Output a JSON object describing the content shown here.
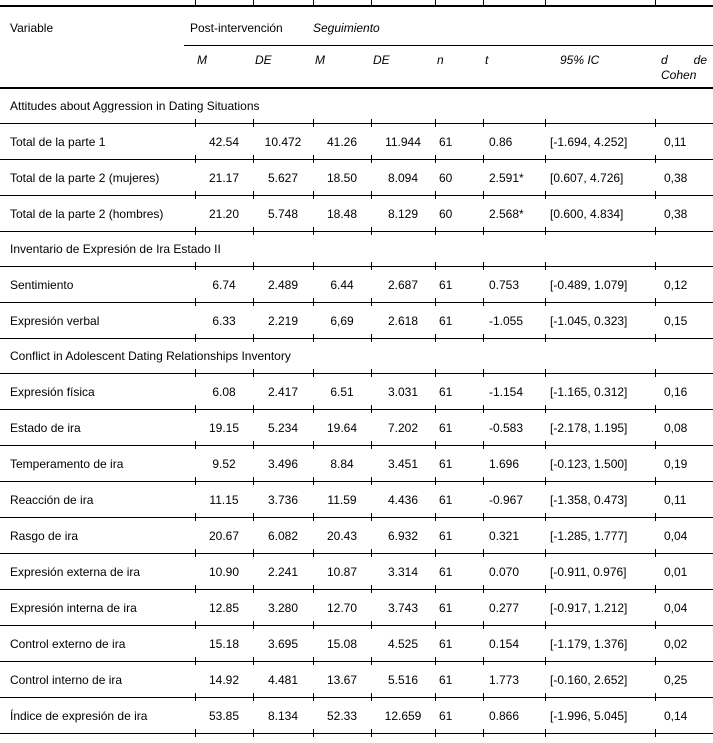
{
  "table": {
    "header": {
      "variable": "Variable",
      "group_post": "Post-intervención",
      "group_seg": "Seguimiento",
      "sub": {
        "m1": "M",
        "de1": "DE",
        "m2": "M",
        "de2": "DE",
        "n": "n",
        "t": "t",
        "ci": "95% IC",
        "d": "d de Cohen"
      }
    },
    "rows": [
      {
        "type": "section",
        "label": "Attitudes about Aggression in Dating Situations"
      },
      {
        "type": "data",
        "label": "Total de la parte 1",
        "cells": [
          "42.54",
          "10.472",
          "41.26",
          "11.944",
          "61",
          "0.86",
          "[-1.694, 4.252]",
          "0,11"
        ]
      },
      {
        "type": "data",
        "label": "Total de la parte 2 (mujeres)",
        "cells": [
          "21.17",
          "5.627",
          "18.50",
          "8.094",
          "60",
          "2.591*",
          "[0.607, 4.726]",
          "0,38"
        ]
      },
      {
        "type": "data",
        "label": "Total de la parte 2 (hombres)",
        "cells": [
          "21.20",
          "5.748",
          "18.48",
          "8.129",
          "60",
          "2.568*",
          "[0.600, 4.834]",
          "0,38"
        ]
      },
      {
        "type": "section",
        "label": "Inventario de Expresión de Ira Estado II"
      },
      {
        "type": "data",
        "label": "Sentimiento",
        "cells": [
          "6.74",
          "2.489",
          "6.44",
          "2.687",
          "61",
          "0.753",
          "[-0.489, 1.079]",
          "0,12"
        ]
      },
      {
        "type": "data",
        "label": "Expresión verbal",
        "cells": [
          "6.33",
          "2.219",
          "6,69",
          "2.618",
          "61",
          "-1.055",
          "[-1.045, 0.323]",
          "0,15"
        ]
      },
      {
        "type": "section",
        "label": "Conflict in Adolescent Dating Relationships Inventory"
      },
      {
        "type": "data",
        "label": "Expresión física",
        "cells": [
          "6.08",
          "2.417",
          "6.51",
          "3.031",
          "61",
          "-1.154",
          "[-1.165, 0.312]",
          "0,16"
        ]
      },
      {
        "type": "data",
        "label": "Estado de ira",
        "cells": [
          "19.15",
          "5.234",
          "19.64",
          "7.202",
          "61",
          "-0.583",
          "[-2.178, 1.195]",
          "0,08"
        ]
      },
      {
        "type": "data",
        "label": "Temperamento de ira",
        "cells": [
          "9.52",
          "3.496",
          "8.84",
          "3.451",
          "61",
          "1.696",
          "[-0.123, 1.500]",
          "0,19"
        ]
      },
      {
        "type": "data",
        "label": "Reacción de ira",
        "cells": [
          "11.15",
          "3.736",
          "11.59",
          "4.436",
          "61",
          "-0.967",
          "[-1.358, 0.473]",
          "0,11"
        ]
      },
      {
        "type": "data",
        "label": "Rasgo de ira",
        "cells": [
          "20.67",
          "6.082",
          "20.43",
          "6.932",
          "61",
          "0.321",
          "[-1.285, 1.777]",
          "0,04"
        ]
      },
      {
        "type": "data",
        "label": "Expresión externa de ira",
        "cells": [
          "10.90",
          "2.241",
          "10.87",
          "3.314",
          "61",
          "0.070",
          "[-0.911, 0.976]",
          "0,01"
        ]
      },
      {
        "type": "data",
        "label": "Expresión interna de ira",
        "cells": [
          "12.85",
          "3.280",
          "12.70",
          "3.743",
          "61",
          "0.277",
          "[-0.917, 1.212]",
          "0,04"
        ]
      },
      {
        "type": "data",
        "label": "Control externo de ira",
        "cells": [
          "15.18",
          "3.695",
          "15.08",
          "4.525",
          "61",
          "0.154",
          "[-1.179, 1.376]",
          "0,02"
        ]
      },
      {
        "type": "data",
        "label": "Control interno de ira",
        "cells": [
          "14.92",
          "4.481",
          "13.67",
          "5.516",
          "61",
          "1.773",
          "[-0.160, 2.652]",
          "0,25"
        ]
      },
      {
        "type": "data",
        "label": "Índice de expresión de ira",
        "cells": [
          "53.85",
          "8.134",
          "52.33",
          "12.659",
          "61",
          "0.866",
          "[-1.996, 5.045]",
          "0,14"
        ]
      }
    ]
  }
}
